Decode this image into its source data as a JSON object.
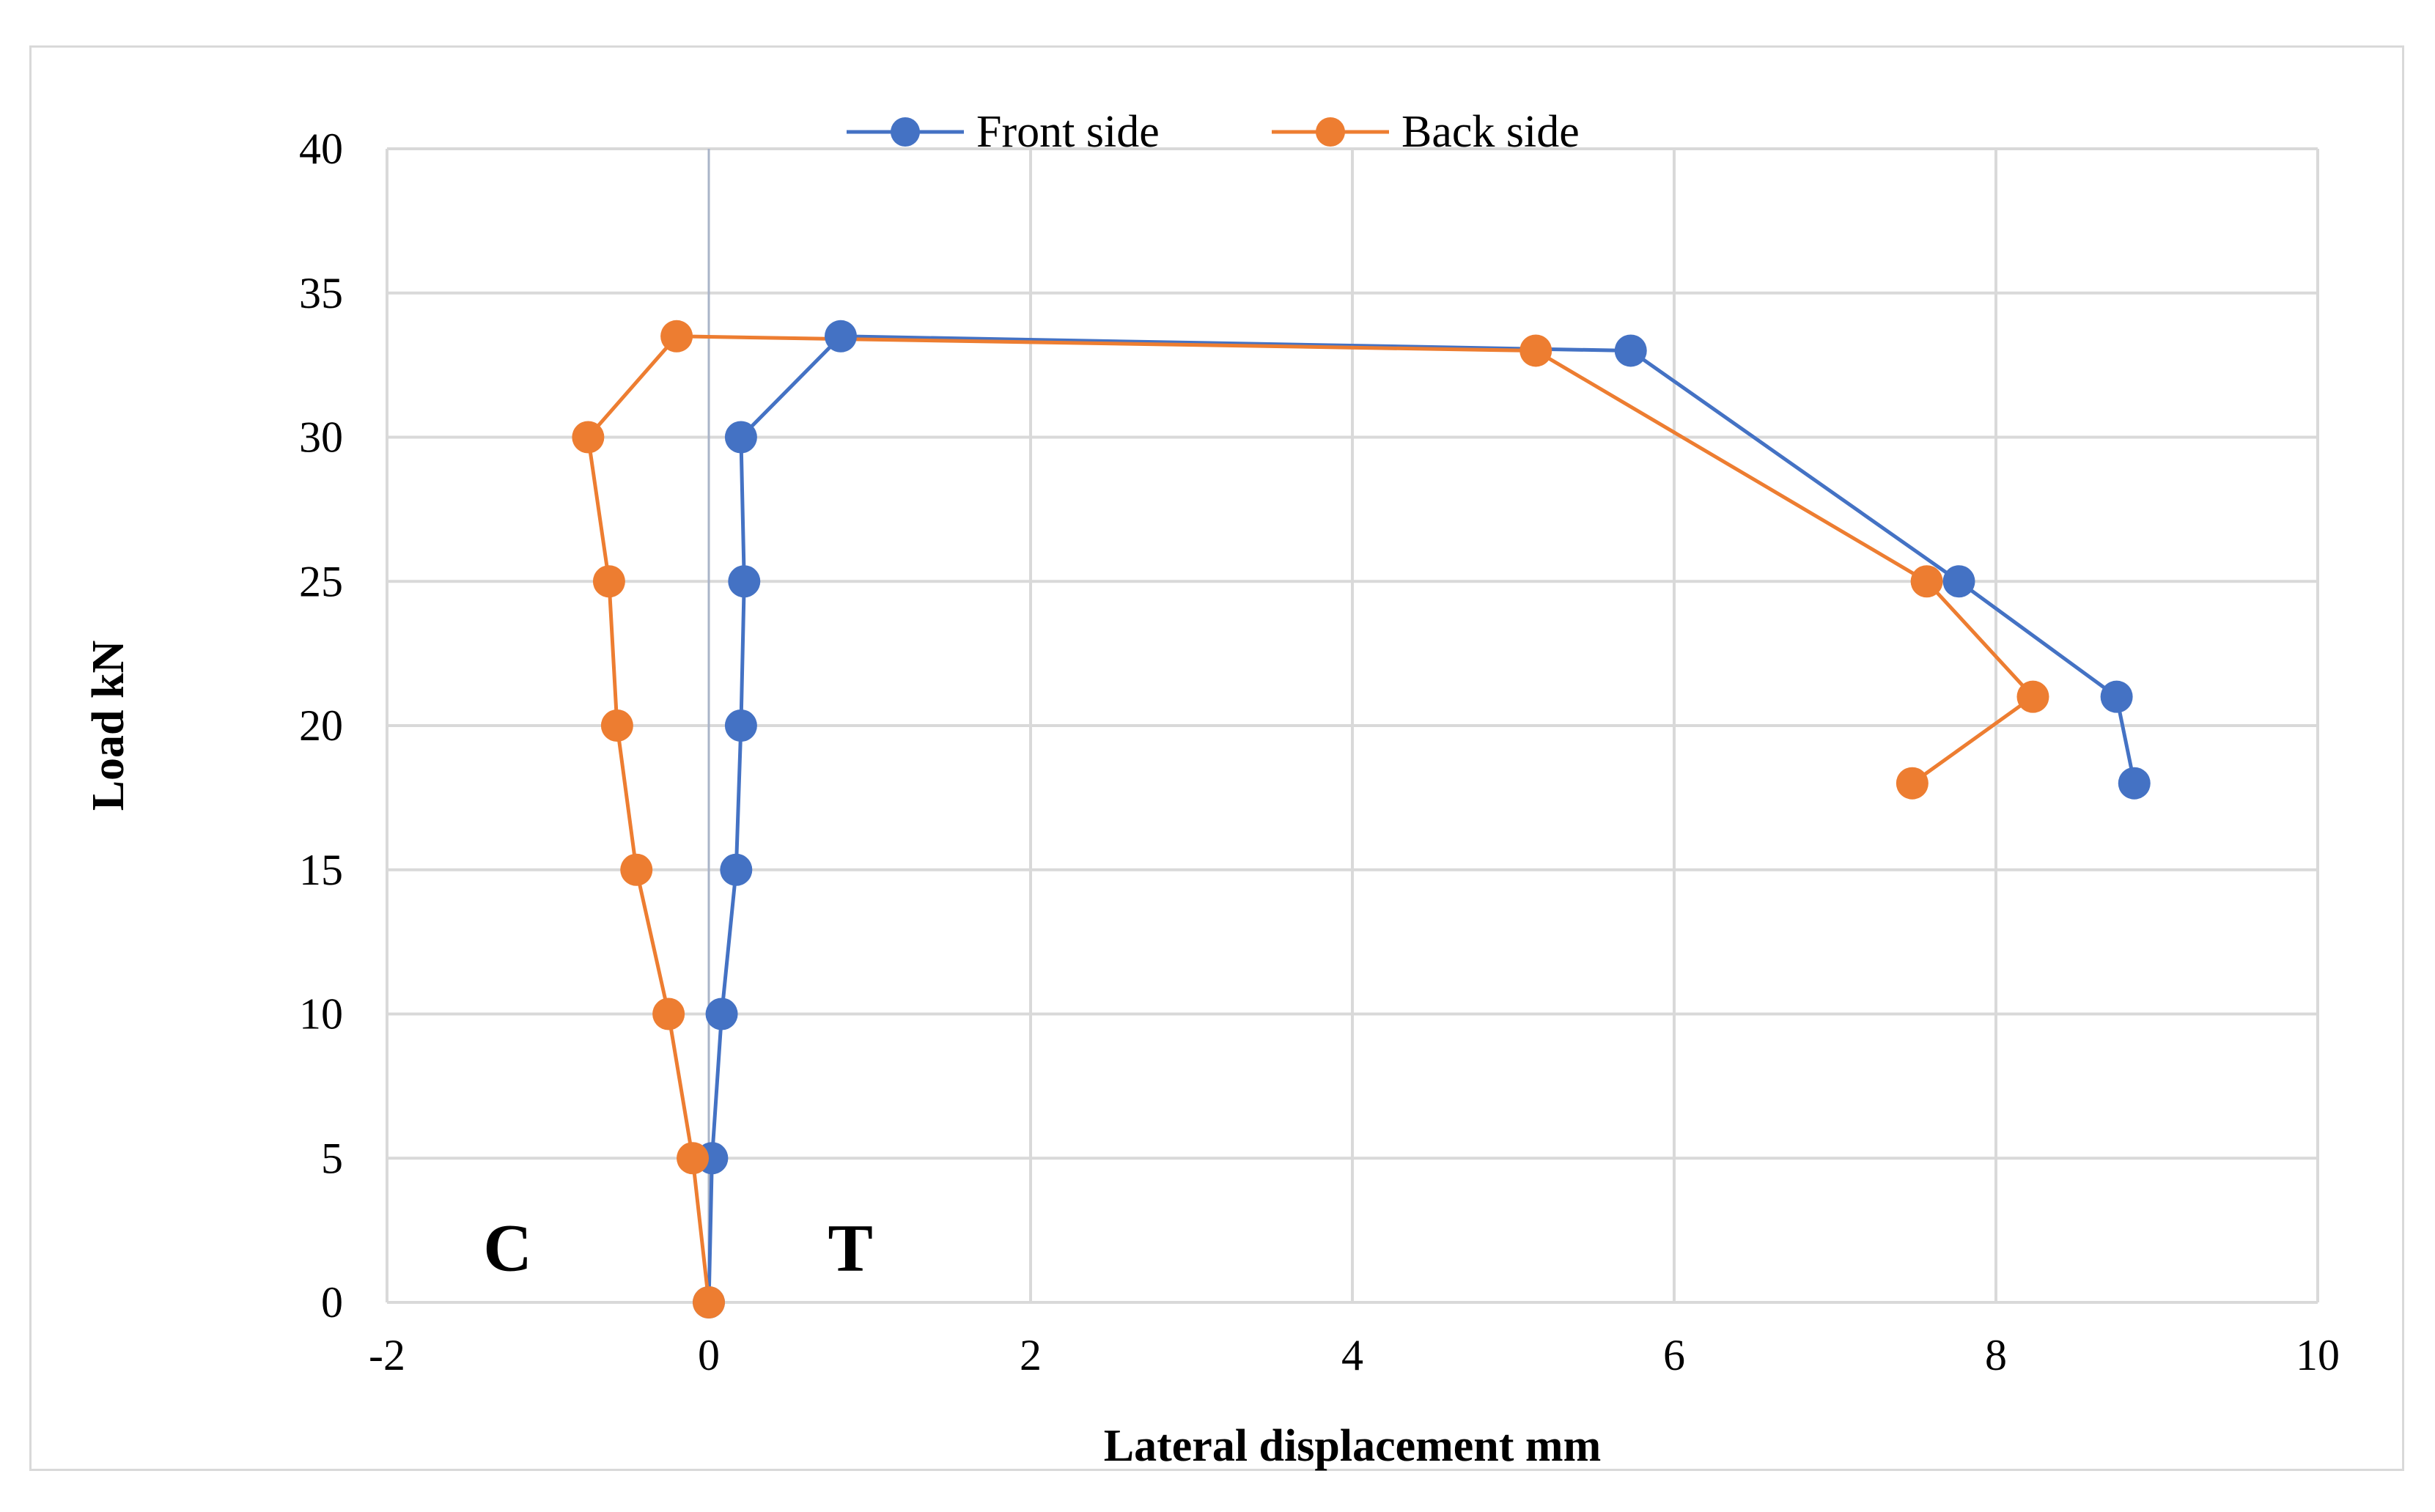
{
  "chart_data": {
    "type": "line",
    "title": "",
    "xlabel": "Lateral displacement mm",
    "ylabel": "Load kN",
    "xlim": [
      -2,
      10
    ],
    "ylim": [
      0,
      40
    ],
    "xticks": [
      -2,
      0,
      2,
      4,
      6,
      8,
      10
    ],
    "yticks": [
      0,
      5,
      10,
      15,
      20,
      25,
      30,
      35,
      40
    ],
    "grid": true,
    "legend_position": "top-center",
    "series": [
      {
        "name": "Front side",
        "color": "#4472C4",
        "points": [
          {
            "x": 0,
            "y": 0
          },
          {
            "x": 0.02,
            "y": 5
          },
          {
            "x": 0.08,
            "y": 10
          },
          {
            "x": 0.17,
            "y": 15
          },
          {
            "x": 0.2,
            "y": 20
          },
          {
            "x": 0.22,
            "y": 25
          },
          {
            "x": 0.2,
            "y": 30
          },
          {
            "x": 0.82,
            "y": 33.5
          },
          {
            "x": 5.73,
            "y": 33
          },
          {
            "x": 7.77,
            "y": 25
          },
          {
            "x": 8.75,
            "y": 21
          },
          {
            "x": 8.86,
            "y": 18
          }
        ]
      },
      {
        "name": "Back side",
        "color": "#ED7D31",
        "points": [
          {
            "x": 0,
            "y": 0
          },
          {
            "x": -0.1,
            "y": 5
          },
          {
            "x": -0.25,
            "y": 10
          },
          {
            "x": -0.45,
            "y": 15
          },
          {
            "x": -0.57,
            "y": 20
          },
          {
            "x": -0.62,
            "y": 25
          },
          {
            "x": -0.75,
            "y": 30
          },
          {
            "x": -0.2,
            "y": 33.5
          },
          {
            "x": 5.14,
            "y": 33
          },
          {
            "x": 7.57,
            "y": 25
          },
          {
            "x": 8.23,
            "y": 21
          },
          {
            "x": 7.48,
            "y": 18
          }
        ]
      }
    ],
    "annotations": [
      {
        "text": "C",
        "x": -1.25,
        "y": 2
      },
      {
        "text": "T",
        "x": 0.88,
        "y": 2
      }
    ]
  }
}
